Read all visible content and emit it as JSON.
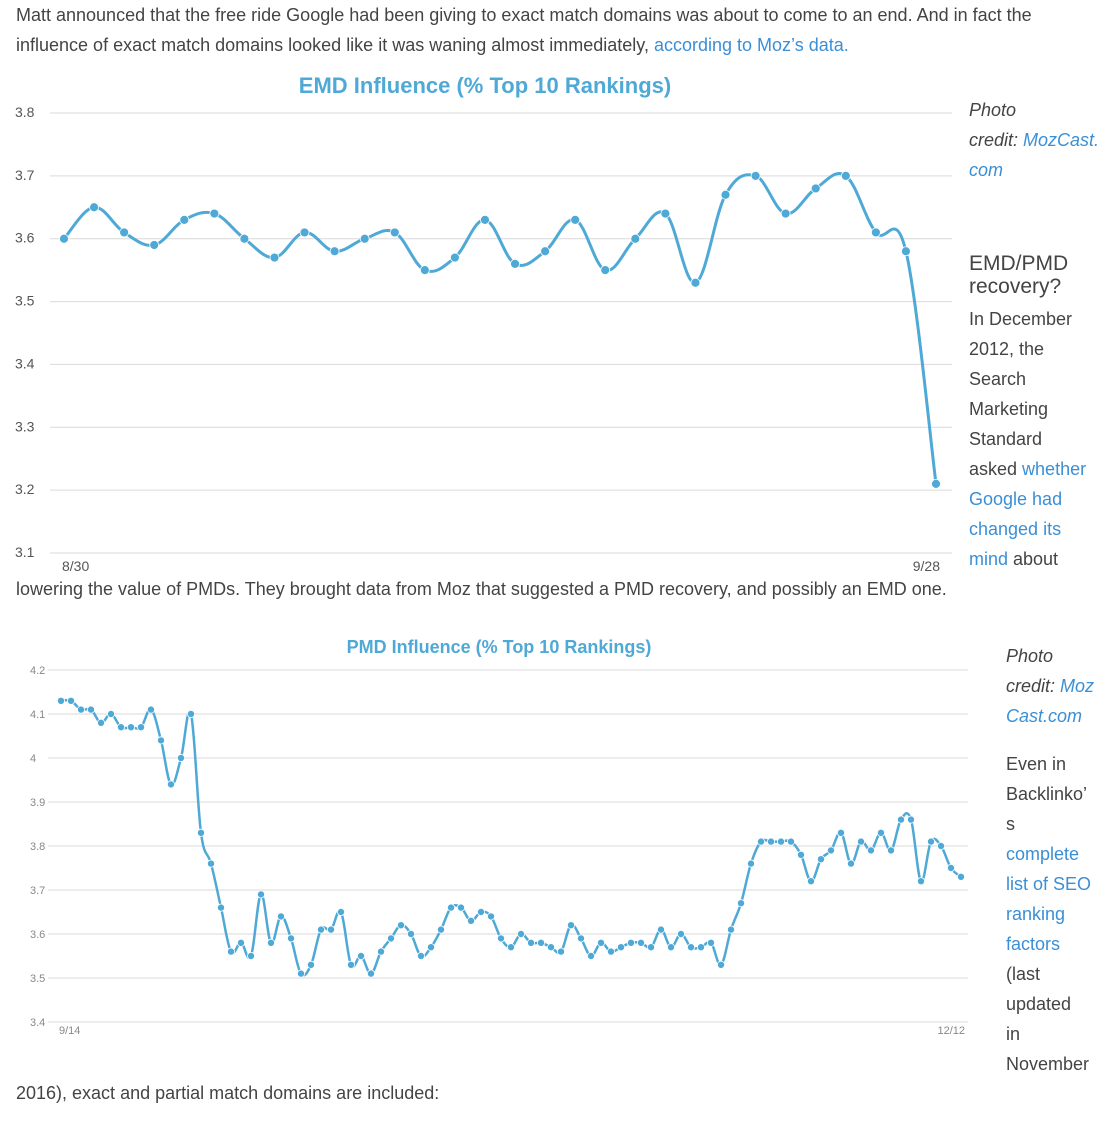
{
  "intro": {
    "line1": "Matt announced that the free ride Google had been giving to exact match domains was about to come to an end. And in fact the",
    "line2_prefix": "influence of exact match domains looked like it was waning almost immediately, ",
    "line2_link": "according to Moz’s data."
  },
  "emd_caption": {
    "photo_line1": "Photo",
    "photo_line2_prefix": "credit: ",
    "photo_link_a": "MozCast.",
    "photo_link_b": "com"
  },
  "recovery": {
    "heading_line1": "EMD/PMD",
    "heading_line2": "recovery?",
    "lines": [
      "In December",
      "2012, the",
      "Search",
      "Marketing",
      "Standard"
    ],
    "asked_prefix": "asked ",
    "link_lines": [
      "whether",
      "Google had",
      "changed its",
      "mind"
    ],
    "mind_suffix": " about",
    "full_line": "lowering the value of PMDs. They brought data from Moz that suggested a PMD recovery, and possibly an EMD one."
  },
  "pmd_caption": {
    "photo_line1": "Photo",
    "photo_line2_prefix": "credit: ",
    "photo_link_a": "Moz",
    "photo_link_b": "Cast.com",
    "lines_a": [
      "Even in",
      "Backlinko’",
      "s"
    ],
    "link_lines": [
      "complete",
      "list of SEO",
      "ranking",
      "factors"
    ],
    "lines_b": [
      "(last",
      "updated",
      "in",
      "November"
    ],
    "final_line": "2016), exact and partial match domains are included:"
  },
  "chart_data": [
    {
      "type": "line",
      "title": "EMD Influence (% Top 10 Rankings)",
      "x_tick_labels": [
        "8/30",
        "9/28"
      ],
      "ylim": [
        3.1,
        3.8
      ],
      "y_ticks": [
        "3.1",
        "3.2",
        "3.3",
        "3.4",
        "3.5",
        "3.6",
        "3.7",
        "3.8"
      ],
      "grid": true,
      "color": "#4fa9d6",
      "values": [
        3.6,
        3.65,
        3.61,
        3.59,
        3.63,
        3.64,
        3.6,
        3.57,
        3.61,
        3.58,
        3.6,
        3.61,
        3.55,
        3.57,
        3.63,
        3.56,
        3.58,
        3.63,
        3.55,
        3.6,
        3.64,
        3.53,
        3.67,
        3.7,
        3.64,
        3.68,
        3.7,
        3.61,
        3.58,
        3.21
      ]
    },
    {
      "type": "line",
      "title": "PMD Influence (% Top 10 Rankings)",
      "x_tick_labels": [
        "9/14",
        "12/12"
      ],
      "ylim": [
        3.4,
        4.2
      ],
      "y_ticks": [
        "3.4",
        "3.5",
        "3.6",
        "3.7",
        "3.8",
        "3.9",
        "4",
        "4.1",
        "4.2"
      ],
      "grid": true,
      "color": "#4fa9d6",
      "values": [
        4.13,
        4.13,
        4.11,
        4.11,
        4.08,
        4.1,
        4.07,
        4.07,
        4.07,
        4.11,
        4.04,
        3.94,
        4.0,
        4.1,
        3.83,
        3.76,
        3.66,
        3.56,
        3.58,
        3.55,
        3.69,
        3.58,
        3.64,
        3.59,
        3.51,
        3.53,
        3.61,
        3.61,
        3.65,
        3.53,
        3.55,
        3.51,
        3.56,
        3.59,
        3.62,
        3.6,
        3.55,
        3.57,
        3.61,
        3.66,
        3.66,
        3.63,
        3.65,
        3.64,
        3.59,
        3.57,
        3.6,
        3.58,
        3.58,
        3.57,
        3.56,
        3.62,
        3.59,
        3.55,
        3.58,
        3.56,
        3.57,
        3.58,
        3.58,
        3.57,
        3.61,
        3.57,
        3.6,
        3.57,
        3.57,
        3.58,
        3.53,
        3.61,
        3.67,
        3.76,
        3.81,
        3.81,
        3.81,
        3.81,
        3.78,
        3.72,
        3.77,
        3.79,
        3.83,
        3.76,
        3.81,
        3.79,
        3.83,
        3.79,
        3.86,
        3.86,
        3.72,
        3.81,
        3.8,
        3.75,
        3.73
      ]
    }
  ]
}
